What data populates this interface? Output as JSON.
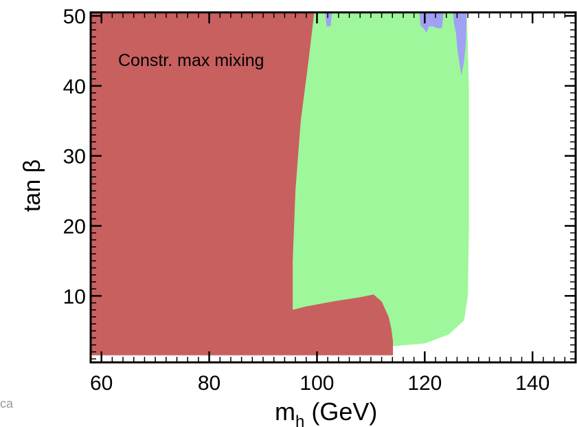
{
  "chart_data": {
    "type": "area",
    "xlabel_main": "m",
    "xlabel_sub": "h",
    "xlabel_unit": " (GeV)",
    "ylabel": "tan β",
    "xlim": [
      58,
      148
    ],
    "ylim": [
      0.5,
      50.5
    ],
    "x_ticks": [
      60,
      80,
      100,
      120,
      140
    ],
    "x_tick_labels": [
      "60",
      "80",
      "100",
      "120",
      "140"
    ],
    "y_ticks": [
      10,
      20,
      30,
      40,
      50
    ],
    "y_tick_labels": [
      "10",
      "20",
      "30",
      "40",
      "50"
    ],
    "annotation": "Constr. max mixing",
    "corner_text": "ca",
    "colors": {
      "red": "#c86060",
      "green": "#9ef79a",
      "blue": "#a0a0f4",
      "axis": "#000000"
    },
    "regions": [
      {
        "color": "green",
        "points": [
          [
            100.5,
            50.5
          ],
          [
            127.8,
            50.5
          ],
          [
            128.2,
            40
          ],
          [
            128.2,
            20
          ],
          [
            128.0,
            10
          ],
          [
            127.3,
            6.5
          ],
          [
            124.5,
            4.5
          ],
          [
            120,
            3.2
          ],
          [
            113.8,
            2.8
          ],
          [
            96,
            7
          ],
          [
            91.5,
            7
          ],
          [
            91.5,
            8
          ],
          [
            95.5,
            8
          ],
          [
            95.5,
            15
          ],
          [
            96,
            25
          ],
          [
            97,
            35
          ],
          [
            98.5,
            44
          ],
          [
            99.5,
            50.5
          ]
        ]
      },
      {
        "color": "blue",
        "points": [
          [
            101.5,
            50.5
          ],
          [
            102.8,
            50.5
          ],
          [
            102.5,
            48.5
          ],
          [
            101.8,
            48.5
          ]
        ]
      },
      {
        "color": "blue",
        "points": [
          [
            119,
            50.5
          ],
          [
            123.5,
            50.5
          ],
          [
            123.2,
            48.3
          ],
          [
            122.5,
            48.2
          ],
          [
            121.5,
            48.5
          ],
          [
            120.8,
            48.5
          ],
          [
            120.3,
            47.6
          ],
          [
            119.8,
            48.2
          ],
          [
            119.2,
            48.6
          ]
        ]
      },
      {
        "color": "blue",
        "points": [
          [
            125.3,
            50.5
          ],
          [
            127.8,
            50.5
          ],
          [
            127.6,
            46
          ],
          [
            127.3,
            43.5
          ],
          [
            126.8,
            41.5
          ],
          [
            126.1,
            45
          ],
          [
            125.8,
            47.5
          ],
          [
            125.4,
            49
          ]
        ]
      },
      {
        "color": "red",
        "points": [
          [
            58,
            50.5
          ],
          [
            99.5,
            50.5
          ],
          [
            98.5,
            44
          ],
          [
            97,
            35
          ],
          [
            96,
            25
          ],
          [
            95.5,
            15
          ],
          [
            95.5,
            8
          ],
          [
            98,
            8.5
          ],
          [
            103,
            9.2
          ],
          [
            108,
            9.8
          ],
          [
            110.5,
            10.2
          ],
          [
            112,
            9.2
          ],
          [
            113.3,
            7
          ],
          [
            113.8,
            5.3
          ],
          [
            114.1,
            3.5
          ],
          [
            114.1,
            1.5
          ],
          [
            58,
            1.5
          ]
        ]
      }
    ]
  }
}
